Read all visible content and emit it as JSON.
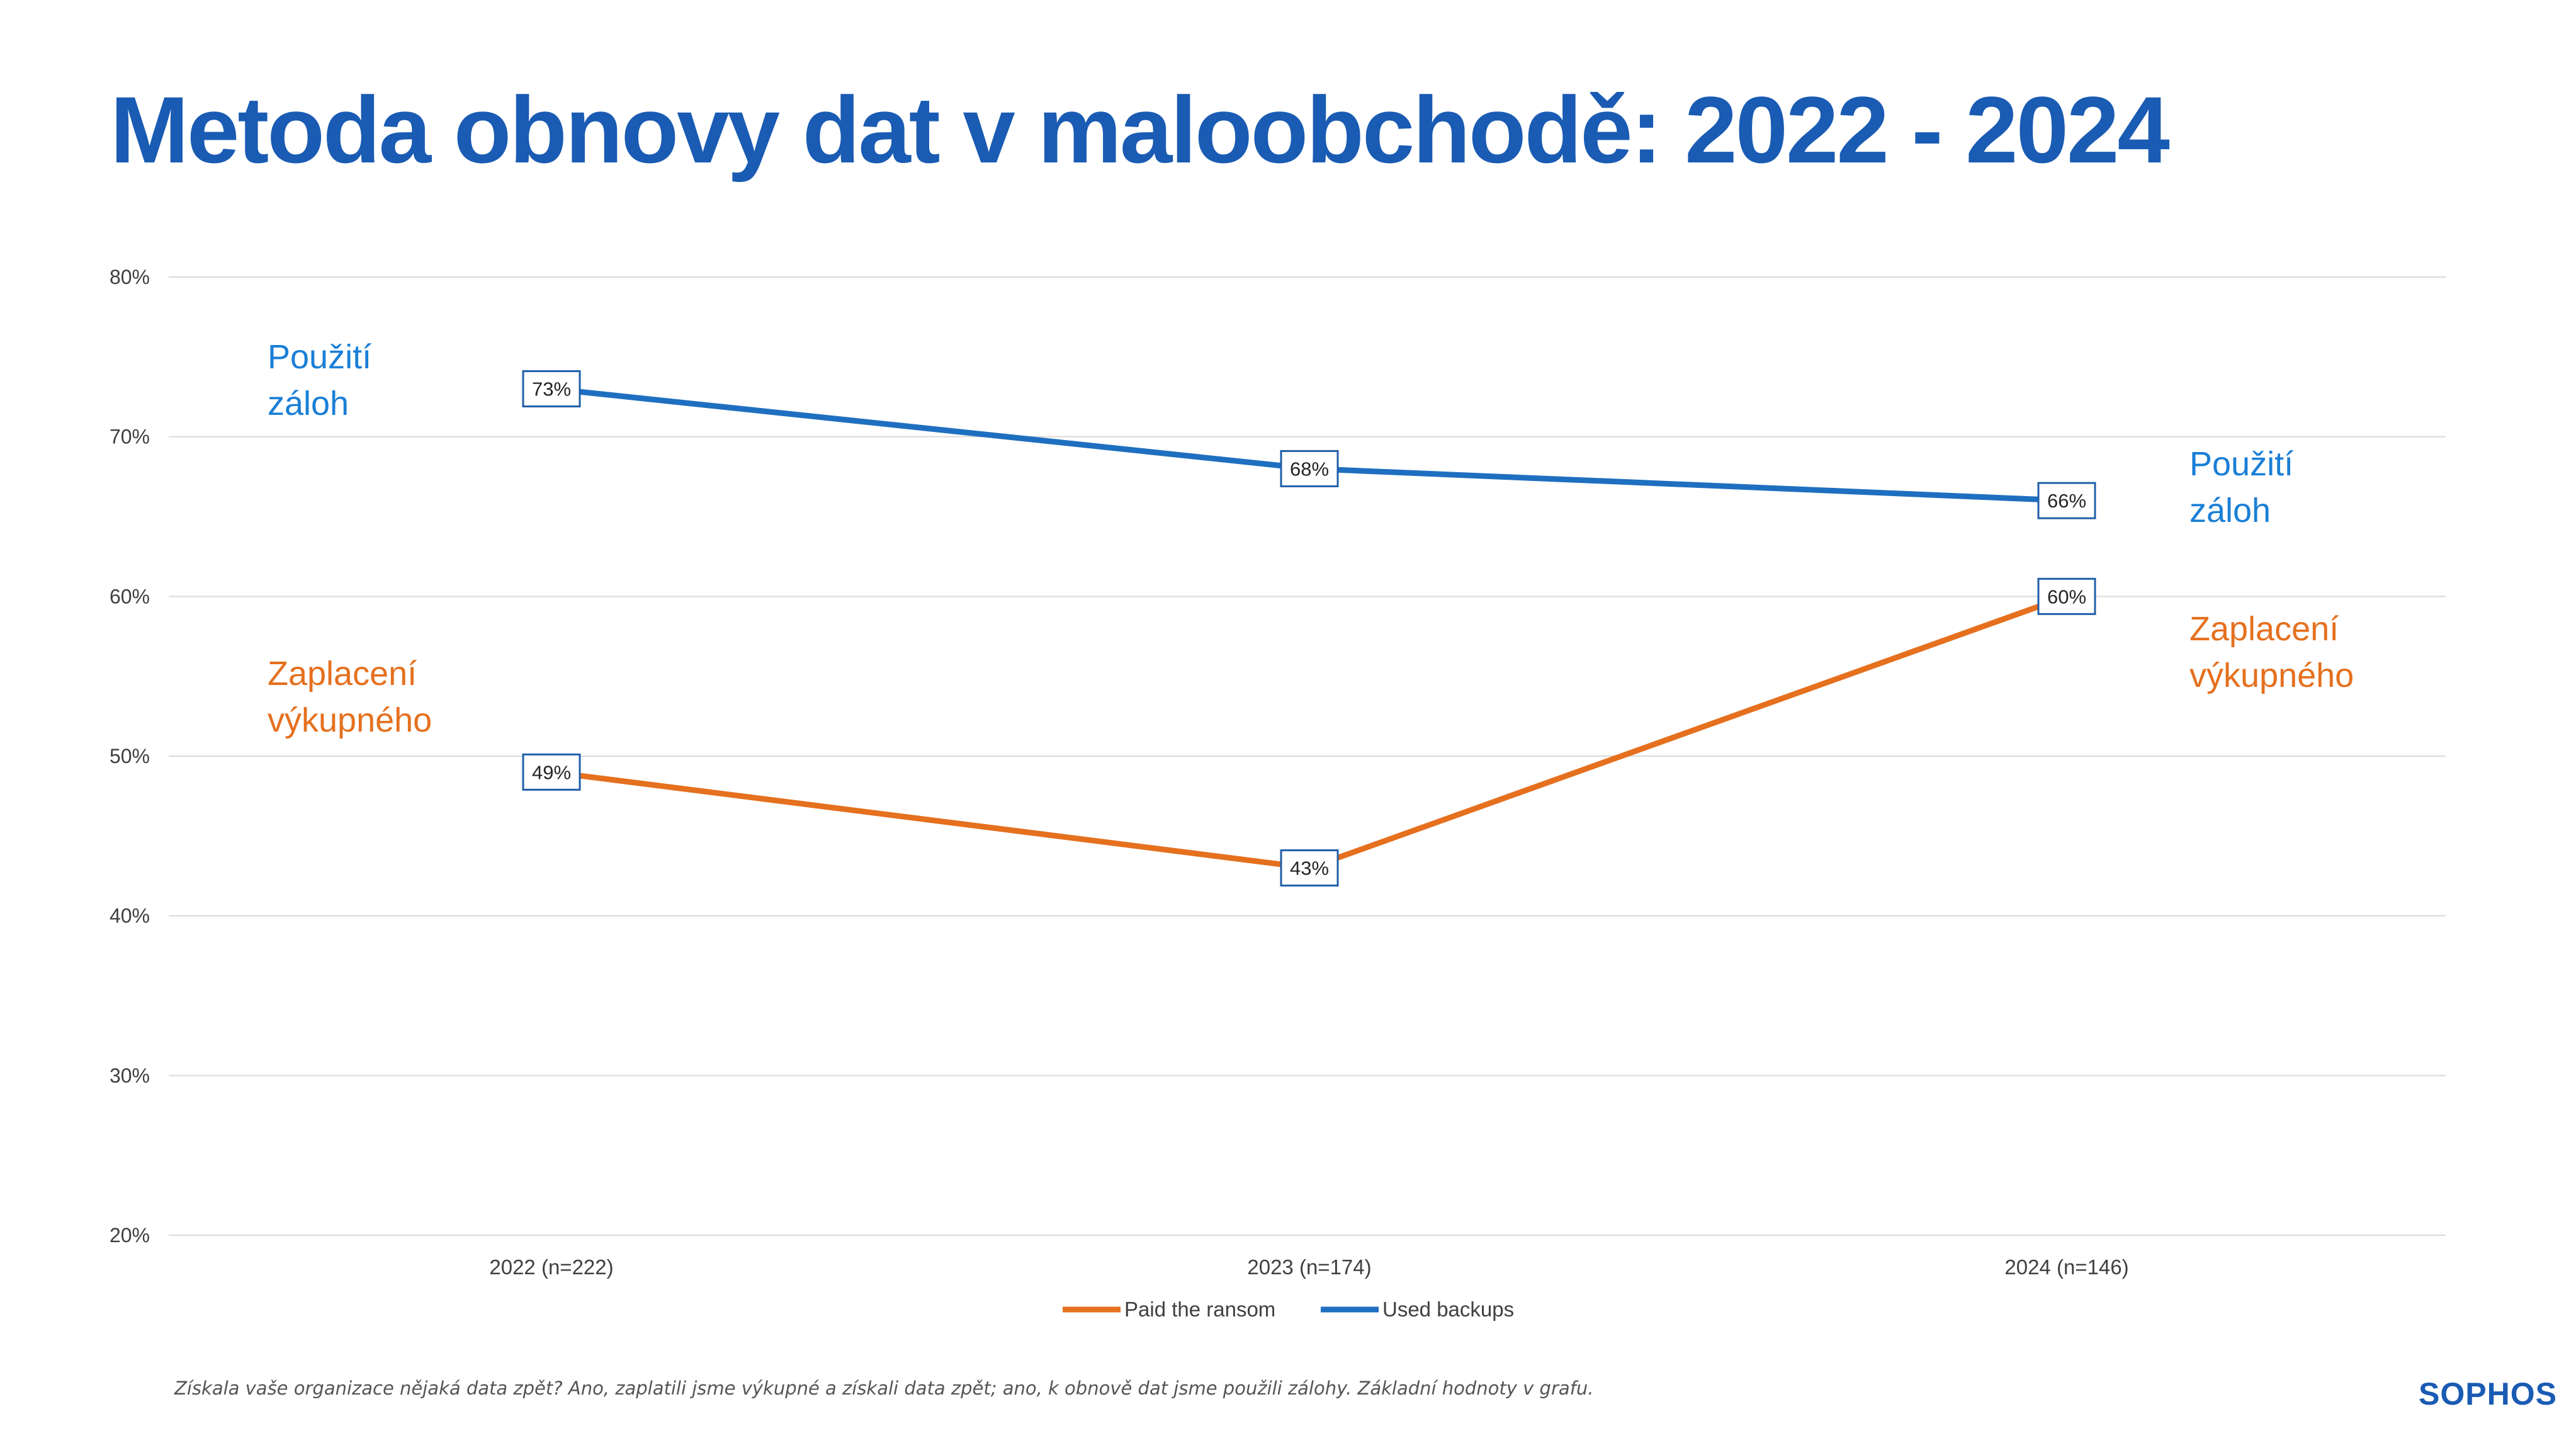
{
  "chart_data": {
    "type": "line",
    "title": "Metoda obnovy dat v maloobchodě: 2022 - 2024",
    "categories": [
      "2022 (n=222)",
      "2023 (n=174)",
      "2024 (n=146)"
    ],
    "series": [
      {
        "name": "Paid the ransom",
        "values": [
          49,
          43,
          60
        ],
        "labels": [
          "49%",
          "43%",
          "60%"
        ],
        "color": "#e5701e"
      },
      {
        "name": "Used backups",
        "values": [
          73,
          68,
          66
        ],
        "labels": [
          "73%",
          "68%",
          "66%"
        ],
        "color": "#1f6fc0"
      }
    ],
    "ylim": [
      20,
      80
    ],
    "yticks": [
      "20%",
      "30%",
      "40%",
      "50%",
      "60%",
      "70%",
      "80%"
    ],
    "grid": true,
    "legend_position": "bottom",
    "annotations": {
      "backups_left": "Použití\nzáloh",
      "ransom_left": "Zaplacení\nvýkupného",
      "backups_right": "Použití\nzáloh",
      "ransom_right": "Zaplacení\nvýkupného"
    }
  },
  "footnote": "Získala vaše organizace nějaká data zpět? Ano, zaplatili jsme výkupné a získali data zpět; ano, k obnově dat jsme použili zálohy. Základní hodnoty v grafu.",
  "logo": "SOPHOS",
  "colors": {
    "title": "#1a5bb3",
    "backups_line": "#1f6fc0",
    "ransom_line": "#e5701e",
    "grid": "#d9d9d9"
  }
}
